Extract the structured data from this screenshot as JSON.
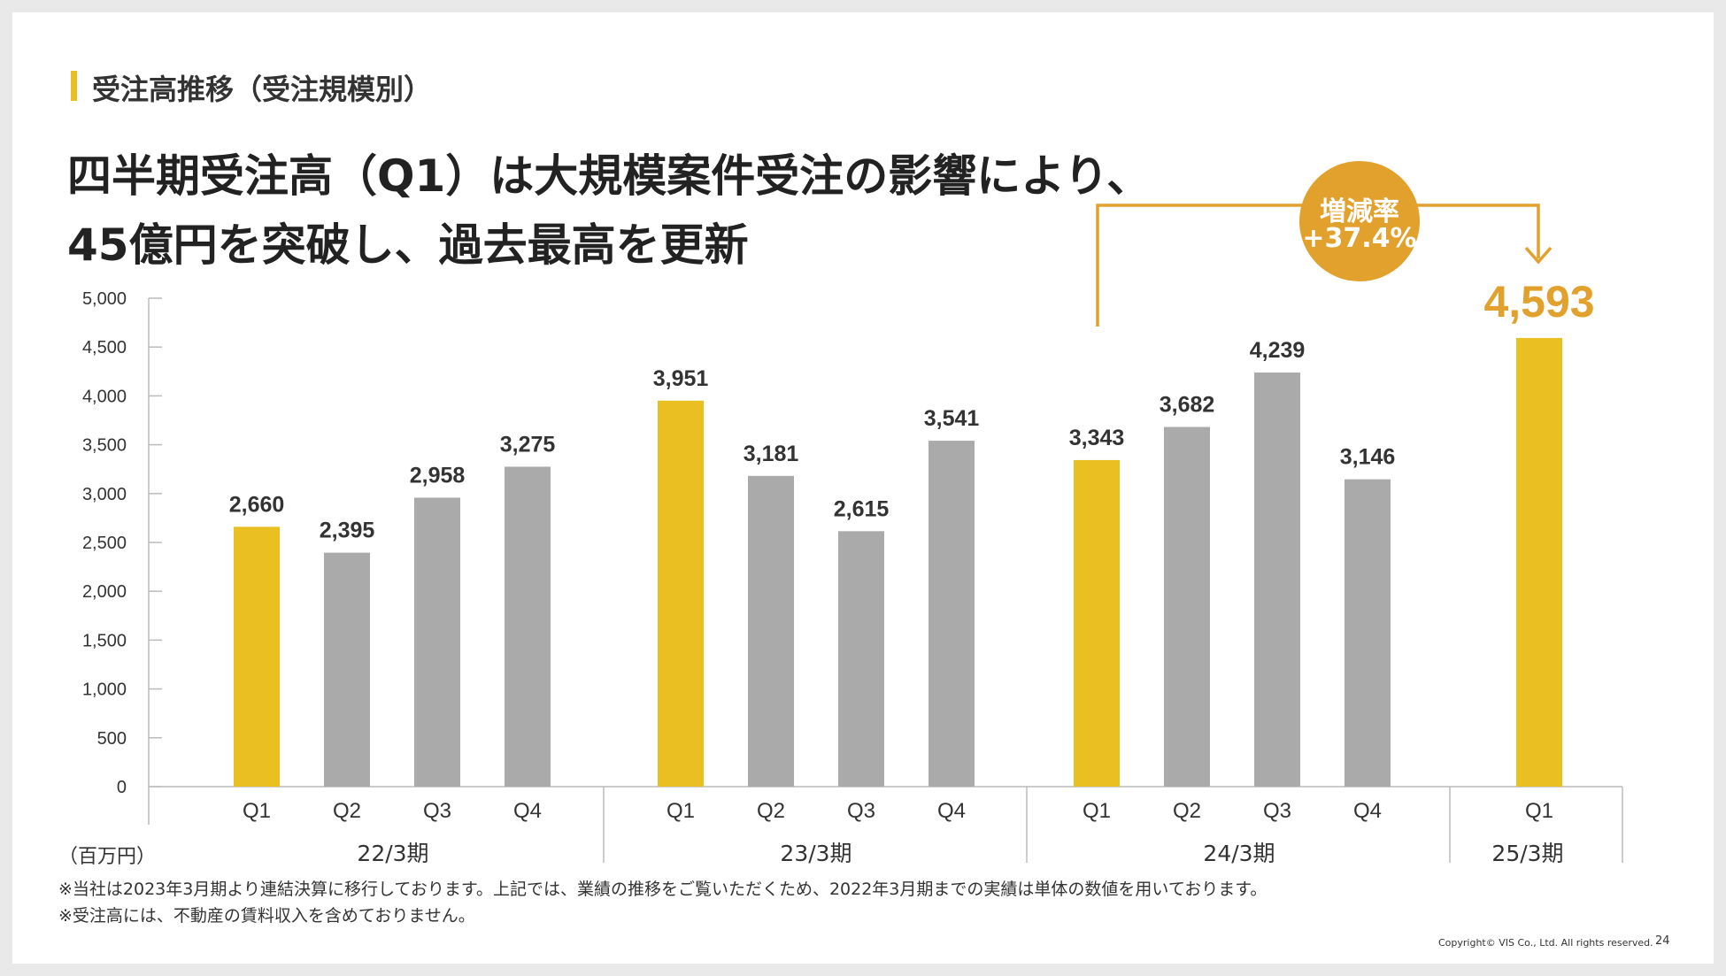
{
  "section_title": "受注高推移（受注規模別）",
  "headline": {
    "line1": "四半期受注高（Q1）は大規模案件受注の影響により、",
    "line2": "45億円を突破し、過去最高を更新"
  },
  "callout": {
    "label": "増減率",
    "value": "+37.4%"
  },
  "unit_label": "（百万円）",
  "notes": [
    "※当社は2023年3月期より連結決算に移行しております。上記では、業績の推移をご覧いただくため、2022年3月期までの実績は単体の数値を用いております。",
    "※受注高には、不動産の賃料収入を含めておりません。"
  ],
  "copyright": "Copyright© VIS Co., Ltd. All rights reserved.",
  "page_number": "24",
  "colors": {
    "highlight_bar": "#e9bf22",
    "normal_bar": "#a9aaa9",
    "accent_orange": "#e2a12c",
    "axis": "#bbbbbb",
    "text": "#333333"
  },
  "chart_data": {
    "type": "bar",
    "title": "受注高推移（受注規模別）",
    "xlabel": "",
    "ylabel": "（百万円）",
    "ylim": [
      0,
      5000
    ],
    "yticks": [
      0,
      500,
      1000,
      1500,
      2000,
      2500,
      3000,
      3500,
      4000,
      4500,
      5000
    ],
    "ytick_labels": [
      "0",
      "500",
      "1,000",
      "1,500",
      "2,000",
      "2,500",
      "3,000",
      "3,500",
      "4,000",
      "4,500",
      "5,000"
    ],
    "grid": false,
    "groups": [
      {
        "name": "22/3期",
        "bars": [
          {
            "quarter": "Q1",
            "value": 2660,
            "label": "2,660",
            "highlight": true
          },
          {
            "quarter": "Q2",
            "value": 2395,
            "label": "2,395",
            "highlight": false
          },
          {
            "quarter": "Q3",
            "value": 2958,
            "label": "2,958",
            "highlight": false
          },
          {
            "quarter": "Q4",
            "value": 3275,
            "label": "3,275",
            "highlight": false
          }
        ]
      },
      {
        "name": "23/3期",
        "bars": [
          {
            "quarter": "Q1",
            "value": 3951,
            "label": "3,951",
            "highlight": true
          },
          {
            "quarter": "Q2",
            "value": 3181,
            "label": "3,181",
            "highlight": false
          },
          {
            "quarter": "Q3",
            "value": 2615,
            "label": "2,615",
            "highlight": false
          },
          {
            "quarter": "Q4",
            "value": 3541,
            "label": "3,541",
            "highlight": false
          }
        ]
      },
      {
        "name": "24/3期",
        "bars": [
          {
            "quarter": "Q1",
            "value": 3343,
            "label": "3,343",
            "highlight": true
          },
          {
            "quarter": "Q2",
            "value": 3682,
            "label": "3,682",
            "highlight": false
          },
          {
            "quarter": "Q3",
            "value": 4239,
            "label": "4,239",
            "highlight": false
          },
          {
            "quarter": "Q4",
            "value": 3146,
            "label": "3,146",
            "highlight": false
          }
        ]
      },
      {
        "name": "25/3期",
        "bars": [
          {
            "quarter": "Q1",
            "value": 4593,
            "label": "4,593",
            "highlight": true,
            "emphasis": true
          }
        ]
      }
    ]
  }
}
